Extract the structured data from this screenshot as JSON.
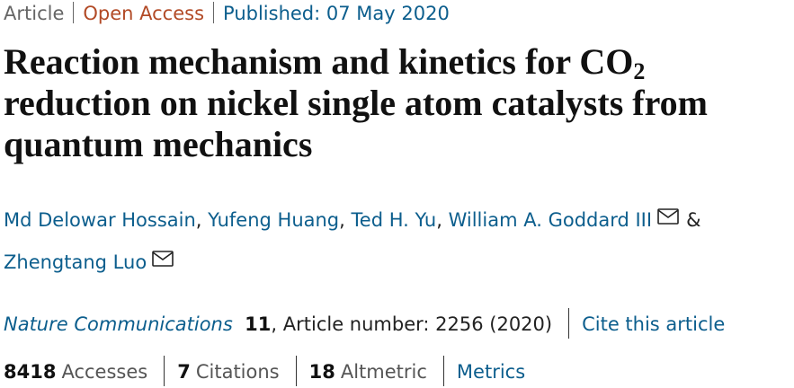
{
  "header": {
    "type": "Article",
    "access": "Open Access",
    "published": "Published: 07 May 2020"
  },
  "title": {
    "text": "Reaction mechanism and kinetics for CO",
    "subscript": "2",
    "rest": "reduction on nickel single atom catalysts from quantum mechanics"
  },
  "authors": [
    {
      "name": "Md Delowar Hossain",
      "sep": ","
    },
    {
      "name": "Yufeng Huang",
      "sep": ","
    },
    {
      "name": "Ted H. Yu",
      "sep": ","
    },
    {
      "name": "William A. Goddard III",
      "sep": "&"
    },
    {
      "name": "Zhengtang Luo"
    }
  ],
  "citation": {
    "journal": "Nature Communications",
    "volume": "11",
    "article": ", Article number: 2256 (2020)",
    "cite": "Cite this article"
  },
  "metrics": {
    "accesses": "8418",
    "accesses_label": "Accesses",
    "citations": "7",
    "citations_label": "Citations",
    "altmetric": "18",
    "altmetric_label": "Altmetric",
    "link": "Metrics"
  }
}
